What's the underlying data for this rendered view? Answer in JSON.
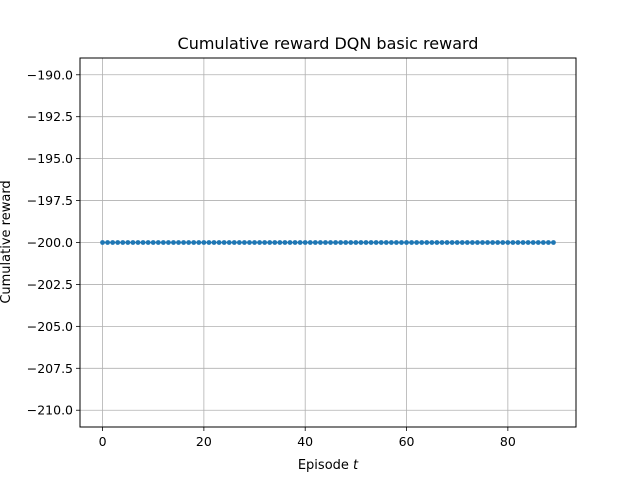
{
  "chart_data": {
    "type": "scatter",
    "title": "Cumulative reward DQN basic reward",
    "xlabel_prefix": "Episode ",
    "xlabel_var": "t",
    "ylabel": "Cumulative reward",
    "xlim": [
      -4.45,
      93.45
    ],
    "ylim": [
      -211.0,
      -189.0
    ],
    "x_ticks": [
      0,
      20,
      40,
      60,
      80
    ],
    "y_ticks": [
      -190.0,
      -192.5,
      -195.0,
      -197.5,
      -200.0,
      -202.5,
      -205.0,
      -207.5,
      -210.0
    ],
    "x_tick_labels": [
      "0",
      "20",
      "40",
      "60",
      "80"
    ],
    "y_tick_labels": [
      "−190.0",
      "−192.5",
      "−195.0",
      "−197.5",
      "−200.0",
      "−202.5",
      "−205.0",
      "−207.5",
      "−210.0"
    ],
    "grid": true,
    "series": [
      {
        "color": "#1f77b4",
        "marker": "circle",
        "connected": true,
        "x_start": 0,
        "x_end": 89,
        "y_constant": -200.0
      }
    ]
  }
}
